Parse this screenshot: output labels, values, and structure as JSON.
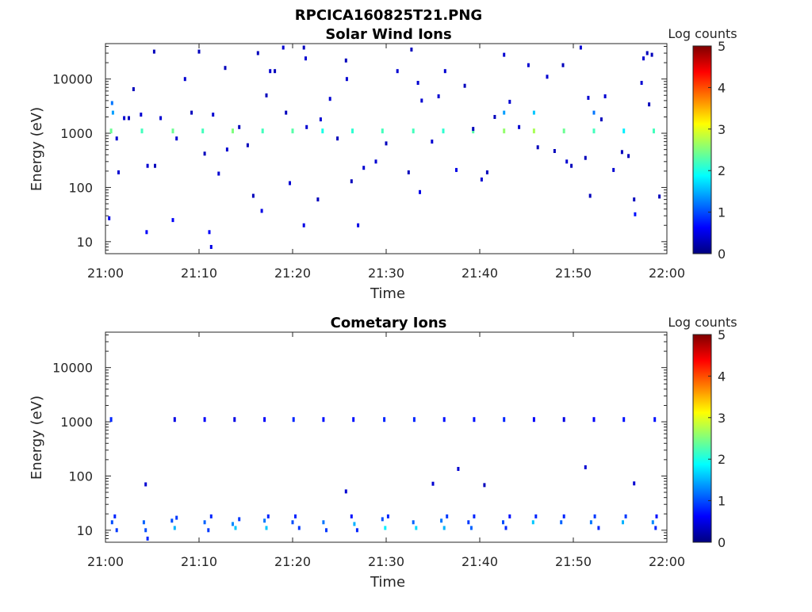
{
  "figure": {
    "title": "RPCICA160825T21.PNG"
  },
  "colormap": [
    "#00007f",
    "#0000ff",
    "#007fff",
    "#00ffff",
    "#7fff7f",
    "#ffff00",
    "#ff7f00",
    "#ff0000",
    "#7f0000"
  ],
  "chart_data": [
    {
      "type": "heatmap",
      "title": "Solar Wind Ions",
      "xlabel": "Time",
      "ylabel": "Energy (eV)",
      "x_ticks": [
        "21:00",
        "21:10",
        "21:20",
        "21:30",
        "21:40",
        "21:50",
        "22:00"
      ],
      "x_tick_minutes": [
        0,
        10,
        20,
        30,
        40,
        50,
        60
      ],
      "xlim_minutes": [
        0,
        60
      ],
      "y_scale": "log",
      "ylim": [
        6,
        45000
      ],
      "y_ticks": [
        "10",
        "100",
        "1000",
        "10000"
      ],
      "y_tick_values": [
        10,
        100,
        1000,
        10000
      ],
      "colorbar": {
        "label": "Log counts",
        "range": [
          0,
          5
        ],
        "ticks": [
          "0",
          "1",
          "2",
          "3",
          "4",
          "5"
        ]
      },
      "points": [
        [
          0.6,
          1100,
          2.4
        ],
        [
          3.9,
          1100,
          2.2
        ],
        [
          7.2,
          1100,
          2.4
        ],
        [
          10.4,
          1100,
          2.2
        ],
        [
          13.6,
          1100,
          2.5
        ],
        [
          16.8,
          1100,
          2.2
        ],
        [
          20.0,
          1100,
          2.3
        ],
        [
          23.2,
          1100,
          2.0
        ],
        [
          26.4,
          1100,
          2.1
        ],
        [
          29.6,
          1100,
          2.2
        ],
        [
          32.9,
          1100,
          2.2
        ],
        [
          36.1,
          1100,
          2.1
        ],
        [
          39.3,
          1100,
          2.3
        ],
        [
          42.6,
          1100,
          2.6
        ],
        [
          45.8,
          1100,
          2.7
        ],
        [
          49.0,
          1100,
          2.4
        ],
        [
          52.2,
          1100,
          2.2
        ],
        [
          55.4,
          1100,
          1.8
        ],
        [
          58.6,
          1100,
          2.2
        ],
        [
          0.8,
          2400,
          1.4
        ],
        [
          0.7,
          3600,
          1.2
        ],
        [
          42.6,
          2400,
          1.4
        ],
        [
          45.8,
          2400,
          1.6
        ],
        [
          52.2,
          2400,
          1.2
        ],
        [
          0.4,
          27,
          0.5
        ],
        [
          4.4,
          15,
          0.6
        ],
        [
          7.2,
          25,
          0.6
        ],
        [
          11.1,
          15,
          0.6
        ],
        [
          11.3,
          8,
          0.5
        ],
        [
          21.2,
          20,
          0.5
        ],
        [
          27.0,
          20,
          0.5
        ],
        [
          16.7,
          37,
          0.5
        ],
        [
          33.6,
          82,
          0.5
        ],
        [
          56.6,
          32,
          0.7
        ],
        [
          1.2,
          800,
          0.4
        ],
        [
          1.4,
          190,
          0.4
        ],
        [
          2.0,
          1900,
          0.4
        ],
        [
          2.5,
          1900,
          0.3
        ],
        [
          3.0,
          6500,
          0.3
        ],
        [
          3.8,
          2200,
          0.4
        ],
        [
          4.5,
          250,
          0.4
        ],
        [
          5.3,
          250,
          0.3
        ],
        [
          5.9,
          1900,
          0.4
        ],
        [
          7.6,
          800,
          0.4
        ],
        [
          8.5,
          10000,
          0.4
        ],
        [
          9.2,
          2400,
          0.3
        ],
        [
          10.6,
          420,
          0.3
        ],
        [
          11.5,
          2200,
          0.4
        ],
        [
          12.1,
          180,
          0.4
        ],
        [
          13.0,
          500,
          0.4
        ],
        [
          14.3,
          1300,
          0.3
        ],
        [
          15.2,
          600,
          0.3
        ],
        [
          15.8,
          70,
          0.3
        ],
        [
          17.2,
          5000,
          0.3
        ],
        [
          17.6,
          14000,
          0.4
        ],
        [
          18.1,
          14000,
          0.3
        ],
        [
          19.3,
          2400,
          0.3
        ],
        [
          19.7,
          120,
          0.4
        ],
        [
          21.5,
          1300,
          0.4
        ],
        [
          22.7,
          60,
          0.3
        ],
        [
          23.0,
          1800,
          0.4
        ],
        [
          24.0,
          4300,
          0.4
        ],
        [
          24.8,
          800,
          0.3
        ],
        [
          25.8,
          10000,
          0.4
        ],
        [
          26.3,
          130,
          0.3
        ],
        [
          27.6,
          230,
          0.4
        ],
        [
          28.9,
          300,
          0.4
        ],
        [
          30.0,
          650,
          0.3
        ],
        [
          31.2,
          14000,
          0.4
        ],
        [
          32.4,
          190,
          0.3
        ],
        [
          33.4,
          8500,
          0.4
        ],
        [
          33.8,
          4000,
          0.4
        ],
        [
          34.9,
          700,
          0.4
        ],
        [
          35.6,
          4800,
          0.4
        ],
        [
          36.3,
          14000,
          0.4
        ],
        [
          37.5,
          210,
          0.5
        ],
        [
          38.4,
          7500,
          0.3
        ],
        [
          39.3,
          1200,
          0.3
        ],
        [
          40.2,
          140,
          0.4
        ],
        [
          40.8,
          190,
          0.3
        ],
        [
          41.6,
          2000,
          0.3
        ],
        [
          43.2,
          3800,
          0.4
        ],
        [
          44.2,
          1300,
          0.4
        ],
        [
          45.2,
          18000,
          0.4
        ],
        [
          46.2,
          550,
          0.3
        ],
        [
          47.2,
          11000,
          0.4
        ],
        [
          48.0,
          470,
          0.3
        ],
        [
          48.9,
          18000,
          0.3
        ],
        [
          49.3,
          300,
          0.4
        ],
        [
          49.8,
          250,
          0.3
        ],
        [
          51.3,
          350,
          0.3
        ],
        [
          51.6,
          4500,
          0.4
        ],
        [
          51.8,
          70,
          0.3
        ],
        [
          53.0,
          1800,
          0.3
        ],
        [
          53.4,
          4800,
          0.4
        ],
        [
          54.3,
          210,
          0.4
        ],
        [
          55.2,
          450,
          0.3
        ],
        [
          55.9,
          380,
          0.3
        ],
        [
          56.5,
          60,
          0.3
        ],
        [
          57.3,
          8500,
          0.4
        ],
        [
          57.9,
          30000,
          0.3
        ],
        [
          58.1,
          3400,
          0.3
        ],
        [
          59.2,
          68,
          0.3
        ],
        [
          5.2,
          32000,
          0.3
        ],
        [
          10.0,
          32000,
          0.3
        ],
        [
          12.8,
          16000,
          0.3
        ],
        [
          16.3,
          30000,
          0.3
        ],
        [
          19.0,
          38000,
          0.4
        ],
        [
          21.2,
          38000,
          0.3
        ],
        [
          21.4,
          24000,
          0.4
        ],
        [
          25.7,
          22000,
          0.3
        ],
        [
          32.7,
          35000,
          0.3
        ],
        [
          42.6,
          28000,
          0.4
        ],
        [
          50.8,
          38000,
          0.4
        ],
        [
          57.5,
          24000,
          0.4
        ],
        [
          58.4,
          28000,
          0.3
        ]
      ]
    },
    {
      "type": "heatmap",
      "title": "Cometary Ions",
      "xlabel": "Time",
      "ylabel": "Energy (eV)",
      "x_ticks": [
        "21:00",
        "21:10",
        "21:20",
        "21:30",
        "21:40",
        "21:50",
        "22:00"
      ],
      "x_tick_minutes": [
        0,
        10,
        20,
        30,
        40,
        50,
        60
      ],
      "xlim_minutes": [
        0,
        60
      ],
      "y_scale": "log",
      "ylim": [
        6,
        45000
      ],
      "y_ticks": [
        "10",
        "100",
        "1000",
        "10000"
      ],
      "y_tick_values": [
        10,
        100,
        1000,
        10000
      ],
      "colorbar": {
        "label": "Log counts",
        "range": [
          0,
          5
        ],
        "ticks": [
          "0",
          "1",
          "2",
          "3",
          "4",
          "5"
        ]
      },
      "points": [
        [
          0.6,
          1100,
          0.8
        ],
        [
          7.4,
          1100,
          0.5
        ],
        [
          10.6,
          1100,
          0.6
        ],
        [
          13.8,
          1100,
          0.5
        ],
        [
          17.0,
          1100,
          0.6
        ],
        [
          20.1,
          1100,
          0.8
        ],
        [
          23.3,
          1100,
          0.7
        ],
        [
          26.5,
          1100,
          0.7
        ],
        [
          29.8,
          1100,
          0.8
        ],
        [
          33.0,
          1100,
          0.8
        ],
        [
          36.2,
          1100,
          0.7
        ],
        [
          39.4,
          1100,
          0.7
        ],
        [
          42.6,
          1100,
          0.8
        ],
        [
          45.8,
          1100,
          0.6
        ],
        [
          49.0,
          1100,
          0.5
        ],
        [
          52.2,
          1100,
          0.6
        ],
        [
          55.4,
          1100,
          0.7
        ],
        [
          58.7,
          1100,
          0.7
        ],
        [
          4.3,
          70,
          0.4
        ],
        [
          25.7,
          52,
          0.4
        ],
        [
          35.0,
          72,
          0.4
        ],
        [
          37.7,
          135,
          0.4
        ],
        [
          40.5,
          68,
          0.3
        ],
        [
          51.3,
          145,
          0.4
        ],
        [
          56.5,
          73,
          0.4
        ],
        [
          0.7,
          14,
          1.0
        ],
        [
          1.0,
          18,
          0.8
        ],
        [
          1.2,
          10,
          0.9
        ],
        [
          4.1,
          14,
          1.1
        ],
        [
          4.3,
          10,
          1.0
        ],
        [
          4.5,
          7,
          0.8
        ],
        [
          7.1,
          15,
          1.0
        ],
        [
          7.4,
          11,
          1.5
        ],
        [
          7.6,
          17,
          0.9
        ],
        [
          10.6,
          14,
          1.1
        ],
        [
          11.0,
          10,
          0.9
        ],
        [
          11.3,
          18,
          0.8
        ],
        [
          13.6,
          13,
          1.3
        ],
        [
          13.9,
          11,
          1.6
        ],
        [
          14.3,
          16,
          0.9
        ],
        [
          17.0,
          15,
          1.2
        ],
        [
          17.2,
          11,
          1.6
        ],
        [
          17.4,
          18,
          0.8
        ],
        [
          20.0,
          14,
          1.0
        ],
        [
          20.3,
          18,
          0.8
        ],
        [
          20.7,
          11,
          0.9
        ],
        [
          23.3,
          14,
          1.2
        ],
        [
          23.6,
          10,
          0.9
        ],
        [
          26.3,
          18,
          0.7
        ],
        [
          26.6,
          13,
          1.5
        ],
        [
          26.9,
          10,
          0.8
        ],
        [
          29.6,
          16,
          1.0
        ],
        [
          29.9,
          11,
          1.8
        ],
        [
          30.2,
          18,
          0.8
        ],
        [
          32.9,
          14,
          1.1
        ],
        [
          33.2,
          11,
          1.7
        ],
        [
          35.9,
          15,
          1.2
        ],
        [
          36.2,
          11,
          1.5
        ],
        [
          36.5,
          18,
          0.9
        ],
        [
          38.8,
          14,
          0.9
        ],
        [
          39.1,
          11,
          1.1
        ],
        [
          39.4,
          18,
          0.8
        ],
        [
          42.5,
          14,
          1.0
        ],
        [
          42.8,
          11,
          0.8
        ],
        [
          43.2,
          18,
          0.7
        ],
        [
          45.7,
          14,
          1.6
        ],
        [
          46.0,
          18,
          0.8
        ],
        [
          48.7,
          14,
          1.1
        ],
        [
          49.0,
          18,
          0.8
        ],
        [
          51.9,
          14,
          1.2
        ],
        [
          52.3,
          18,
          0.9
        ],
        [
          52.7,
          11,
          0.8
        ],
        [
          55.3,
          14,
          1.5
        ],
        [
          55.6,
          18,
          0.9
        ],
        [
          58.5,
          14,
          1.3
        ],
        [
          58.8,
          11,
          0.8
        ],
        [
          58.9,
          18,
          0.7
        ]
      ]
    }
  ]
}
